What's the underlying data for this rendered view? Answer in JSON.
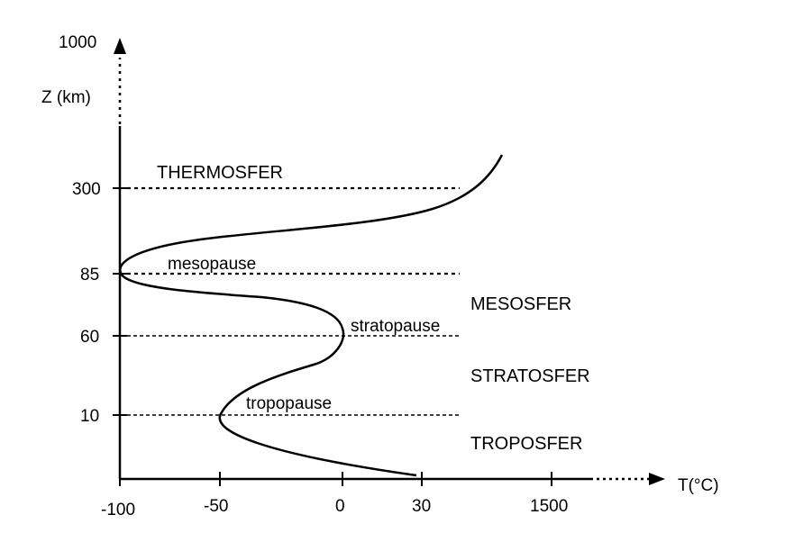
{
  "axes": {
    "y_title": "Z (km)",
    "x_title": "T(°C)",
    "y_ticks": [
      "1000",
      "300",
      "85",
      "60",
      "10"
    ],
    "x_ticks": [
      "-100",
      "-50",
      "0",
      "30",
      "1500"
    ]
  },
  "layers": {
    "thermosfer": "THERMOSFER",
    "mesosfer": "MESOSFER",
    "stratosfer": "STRATOSFER",
    "troposfer": "TROPOSFER"
  },
  "boundaries": {
    "mesopause": "mesopause",
    "stratopause": "stratopause",
    "tropopause": "tropopause"
  },
  "colors": {
    "ink": "#000000",
    "background": "#ffffff"
  }
}
